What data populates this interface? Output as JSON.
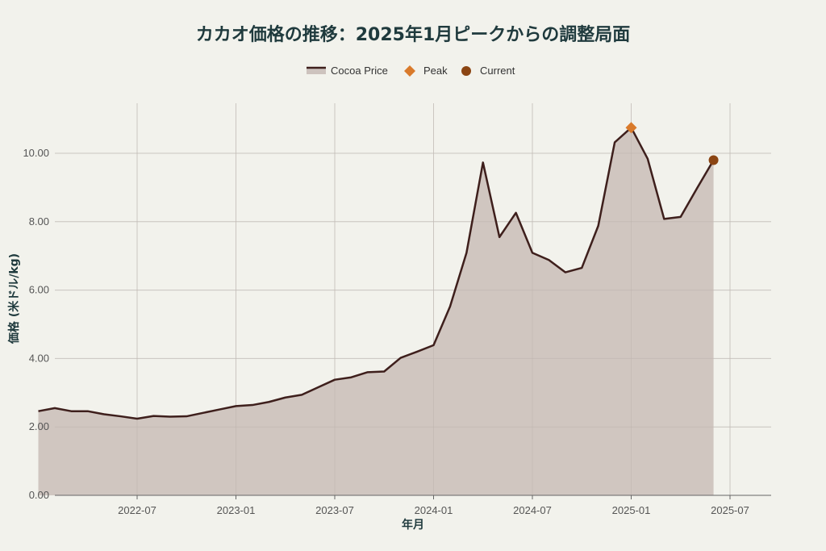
{
  "chart_data": {
    "type": "line",
    "title": "カカオ価格の推移：2025年1月ピークからの調整局面",
    "xlabel": "年月",
    "ylabel": "価格 (米ドル/kg)",
    "ylim": [
      0,
      11.5
    ],
    "yticks": [
      "0.00",
      "2.00",
      "4.00",
      "6.00",
      "8.00",
      "10.00"
    ],
    "xticks": [
      "2022-07",
      "2023-01",
      "2023-07",
      "2024-01",
      "2024-07",
      "2025-01",
      "2025-07"
    ],
    "grid": true,
    "legend_position": "top-center",
    "colors": {
      "line": "#3e1f1c",
      "fill": "#cdc3be",
      "peak": "#d97a2b",
      "current": "#8b4513"
    },
    "series": [
      {
        "name": "Cocoa Price",
        "x": [
          "2022-01",
          "2022-02",
          "2022-03",
          "2022-04",
          "2022-05",
          "2022-06",
          "2022-07",
          "2022-08",
          "2022-09",
          "2022-10",
          "2022-11",
          "2022-12",
          "2023-01",
          "2023-02",
          "2023-03",
          "2023-04",
          "2023-05",
          "2023-06",
          "2023-07",
          "2023-08",
          "2023-09",
          "2023-10",
          "2023-11",
          "2023-12",
          "2024-01",
          "2024-02",
          "2024-03",
          "2024-04",
          "2024-05",
          "2024-06",
          "2024-07",
          "2024-08",
          "2024-09",
          "2024-10",
          "2024-11",
          "2024-12",
          "2025-01",
          "2025-02",
          "2025-03",
          "2025-04",
          "2025-05",
          "2025-06"
        ],
        "values": [
          2.46,
          2.55,
          2.46,
          2.46,
          2.37,
          2.31,
          2.24,
          2.32,
          2.3,
          2.31,
          2.41,
          2.51,
          2.61,
          2.64,
          2.73,
          2.86,
          2.94,
          3.16,
          3.38,
          3.45,
          3.6,
          3.62,
          4.02,
          4.2,
          4.39,
          5.52,
          7.09,
          9.73,
          7.55,
          8.26,
          7.09,
          6.88,
          6.52,
          6.65,
          7.88,
          10.32,
          10.75,
          9.84,
          8.08,
          8.14,
          8.98,
          9.8
        ]
      },
      {
        "name": "Peak",
        "x": [
          "2025-01"
        ],
        "values": [
          10.75
        ]
      },
      {
        "name": "Current",
        "x": [
          "2025-06"
        ],
        "values": [
          9.8
        ]
      }
    ]
  }
}
